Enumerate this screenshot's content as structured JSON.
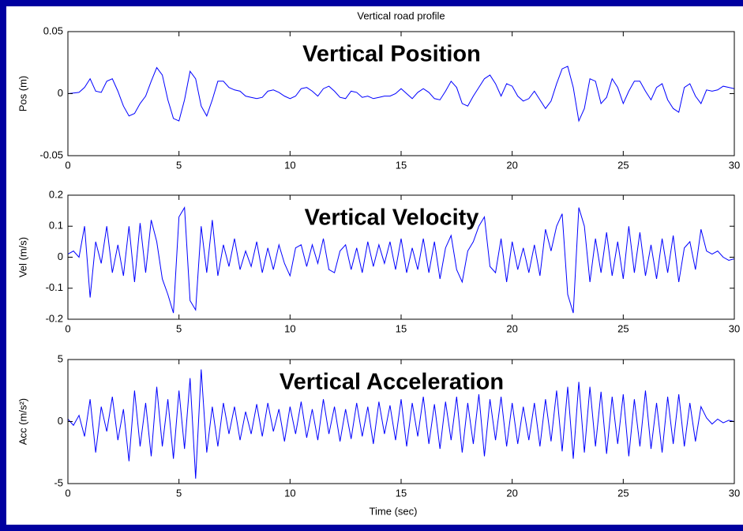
{
  "chart_data": [
    {
      "type": "line",
      "title": "Vertical road profile",
      "annotation": "Vertical Position",
      "ylabel": "Pos (m)",
      "x": [
        0,
        0.25,
        0.5,
        0.75,
        1,
        1.25,
        1.5,
        1.75,
        2,
        2.25,
        2.5,
        2.75,
        3,
        3.25,
        3.5,
        3.75,
        4,
        4.25,
        4.5,
        4.75,
        5,
        5.25,
        5.5,
        5.75,
        6,
        6.25,
        6.5,
        6.75,
        7,
        7.25,
        7.5,
        7.75,
        8,
        8.25,
        8.5,
        8.75,
        9,
        9.25,
        9.5,
        9.75,
        10,
        10.25,
        10.5,
        10.75,
        11,
        11.25,
        11.5,
        11.75,
        12,
        12.25,
        12.5,
        12.75,
        13,
        13.25,
        13.5,
        13.75,
        14,
        14.25,
        14.5,
        14.75,
        15,
        15.25,
        15.5,
        15.75,
        16,
        16.25,
        16.5,
        16.75,
        17,
        17.25,
        17.5,
        17.75,
        18,
        18.25,
        18.5,
        18.75,
        19,
        19.25,
        19.5,
        19.75,
        20,
        20.25,
        20.5,
        20.75,
        21,
        21.25,
        21.5,
        21.75,
        22,
        22.25,
        22.5,
        22.75,
        23,
        23.25,
        23.5,
        23.75,
        24,
        24.25,
        24.5,
        24.75,
        25,
        25.25,
        25.5,
        25.75,
        26,
        26.25,
        26.5,
        26.75,
        27,
        27.25,
        27.5,
        27.75,
        28,
        28.25,
        28.5,
        28.75,
        29,
        29.25,
        29.5,
        29.75,
        30
      ],
      "series": [
        {
          "color": "#0000ff",
          "values": [
            0,
            0.0005,
            0.001,
            0.005,
            0.012,
            0.002,
            0.001,
            0.01,
            0.012,
            0.002,
            -0.01,
            -0.018,
            -0.016,
            -0.008,
            -0.002,
            0.01,
            0.021,
            0.015,
            -0.005,
            -0.02,
            -0.022,
            -0.005,
            0.018,
            0.012,
            -0.01,
            -0.018,
            -0.005,
            0.01,
            0.01,
            0.005,
            0.003,
            0.002,
            -0.002,
            -0.003,
            -0.004,
            -0.003,
            0.002,
            0.003,
            0.001,
            -0.002,
            -0.004,
            -0.002,
            0.004,
            0.005,
            0.002,
            -0.002,
            0.004,
            0.006,
            0.002,
            -0.003,
            -0.004,
            0.002,
            0.001,
            -0.003,
            -0.002,
            -0.004,
            -0.003,
            -0.002,
            -0.002,
            0,
            0.004,
            0,
            -0.004,
            0.001,
            0.004,
            0.001,
            -0.004,
            -0.005,
            0.002,
            0.01,
            0.005,
            -0.008,
            -0.01,
            -0.002,
            0.005,
            0.012,
            0.015,
            0.008,
            -0.002,
            0.008,
            0.006,
            -0.002,
            -0.006,
            -0.004,
            0.002,
            -0.005,
            -0.012,
            -0.006,
            0.008,
            0.02,
            0.022,
            0.005,
            -0.022,
            -0.012,
            0.012,
            0.01,
            -0.008,
            -0.003,
            0.012,
            0.005,
            -0.008,
            0.002,
            0.01,
            0.01,
            0.002,
            -0.005,
            0.005,
            0.008,
            -0.005,
            -0.012,
            -0.015,
            0.005,
            0.008,
            -0.002,
            -0.008,
            0.003,
            0.002,
            0.003,
            0.006,
            0.005,
            0.004
          ]
        }
      ],
      "xlim": [
        0,
        30
      ],
      "ylim": [
        -0.05,
        0.05
      ],
      "xticks": [
        0,
        5,
        10,
        15,
        20,
        25,
        30
      ],
      "yticks": [
        -0.05,
        0,
        0.05
      ]
    },
    {
      "type": "line",
      "annotation": "Vertical Velocity",
      "ylabel": "Vel (m/s)",
      "x": [
        0,
        0.25,
        0.5,
        0.75,
        1,
        1.25,
        1.5,
        1.75,
        2,
        2.25,
        2.5,
        2.75,
        3,
        3.25,
        3.5,
        3.75,
        4,
        4.25,
        4.5,
        4.75,
        5,
        5.25,
        5.5,
        5.75,
        6,
        6.25,
        6.5,
        6.75,
        7,
        7.25,
        7.5,
        7.75,
        8,
        8.25,
        8.5,
        8.75,
        9,
        9.25,
        9.5,
        9.75,
        10,
        10.25,
        10.5,
        10.75,
        11,
        11.25,
        11.5,
        11.75,
        12,
        12.25,
        12.5,
        12.75,
        13,
        13.25,
        13.5,
        13.75,
        14,
        14.25,
        14.5,
        14.75,
        15,
        15.25,
        15.5,
        15.75,
        16,
        16.25,
        16.5,
        16.75,
        17,
        17.25,
        17.5,
        17.75,
        18,
        18.25,
        18.5,
        18.75,
        19,
        19.25,
        19.5,
        19.75,
        20,
        20.25,
        20.5,
        20.75,
        21,
        21.25,
        21.5,
        21.75,
        22,
        22.25,
        22.5,
        22.75,
        23,
        23.25,
        23.5,
        23.75,
        24,
        24.25,
        24.5,
        24.75,
        25,
        25.25,
        25.5,
        25.75,
        26,
        26.25,
        26.5,
        26.75,
        27,
        27.25,
        27.5,
        27.75,
        28,
        28.25,
        28.5,
        28.75,
        29,
        29.25,
        29.5,
        29.75,
        30
      ],
      "series": [
        {
          "color": "#0000ff",
          "values": [
            0.01,
            0.02,
            0,
            0.1,
            -0.13,
            0.05,
            -0.02,
            0.1,
            -0.05,
            0.04,
            -0.06,
            0.1,
            -0.08,
            0.11,
            -0.05,
            0.12,
            0.05,
            -0.07,
            -0.12,
            -0.18,
            0.13,
            0.16,
            -0.14,
            -0.17,
            0.1,
            -0.05,
            0.12,
            -0.06,
            0.04,
            -0.03,
            0.06,
            -0.04,
            0.02,
            -0.03,
            0.05,
            -0.05,
            0.03,
            -0.04,
            0.04,
            -0.02,
            -0.06,
            0.03,
            0.04,
            -0.03,
            0.04,
            -0.02,
            0.06,
            -0.04,
            -0.05,
            0.02,
            0.04,
            -0.04,
            0.03,
            -0.05,
            0.05,
            -0.03,
            0.04,
            -0.02,
            0.05,
            -0.04,
            0.06,
            -0.05,
            0.03,
            -0.04,
            0.06,
            -0.05,
            0.05,
            -0.07,
            0.03,
            0.07,
            -0.04,
            -0.08,
            0.02,
            0.05,
            0.1,
            0.13,
            -0.03,
            -0.05,
            0.06,
            -0.08,
            0.05,
            -0.04,
            0.03,
            -0.05,
            0.04,
            -0.06,
            0.09,
            0.02,
            0.1,
            0.14,
            -0.12,
            -0.18,
            0.16,
            0.1,
            -0.08,
            0.06,
            -0.05,
            0.08,
            -0.06,
            0.05,
            -0.07,
            0.1,
            -0.05,
            0.08,
            -0.06,
            0.04,
            -0.07,
            0.06,
            -0.05,
            0.07,
            -0.08,
            0.03,
            0.05,
            -0.04,
            0.09,
            0.02,
            0.01,
            0.02,
            0,
            -0.01,
            -0.005
          ]
        }
      ],
      "xlim": [
        0,
        30
      ],
      "ylim": [
        -0.2,
        0.2
      ],
      "xticks": [
        0,
        5,
        10,
        15,
        20,
        25,
        30
      ],
      "yticks": [
        -0.2,
        -0.1,
        0,
        0.1,
        0.2
      ]
    },
    {
      "type": "line",
      "annotation": "Vertical Acceleration",
      "ylabel": "Acc (m/s²)",
      "xlabel": "Time (sec)",
      "x": [
        0,
        0.25,
        0.5,
        0.75,
        1,
        1.25,
        1.5,
        1.75,
        2,
        2.25,
        2.5,
        2.75,
        3,
        3.25,
        3.5,
        3.75,
        4,
        4.25,
        4.5,
        4.75,
        5,
        5.25,
        5.5,
        5.75,
        6,
        6.25,
        6.5,
        6.75,
        7,
        7.25,
        7.5,
        7.75,
        8,
        8.25,
        8.5,
        8.75,
        9,
        9.25,
        9.5,
        9.75,
        10,
        10.25,
        10.5,
        10.75,
        11,
        11.25,
        11.5,
        11.75,
        12,
        12.25,
        12.5,
        12.75,
        13,
        13.25,
        13.5,
        13.75,
        14,
        14.25,
        14.5,
        14.75,
        15,
        15.25,
        15.5,
        15.75,
        16,
        16.25,
        16.5,
        16.75,
        17,
        17.25,
        17.5,
        17.75,
        18,
        18.25,
        18.5,
        18.75,
        19,
        19.25,
        19.5,
        19.75,
        20,
        20.25,
        20.5,
        20.75,
        21,
        21.25,
        21.5,
        21.75,
        22,
        22.25,
        22.5,
        22.75,
        23,
        23.25,
        23.5,
        23.75,
        24,
        24.25,
        24.5,
        24.75,
        25,
        25.25,
        25.5,
        25.75,
        26,
        26.25,
        26.5,
        26.75,
        27,
        27.25,
        27.5,
        27.75,
        28,
        28.25,
        28.5,
        28.75,
        29,
        29.25,
        29.5,
        29.75,
        30
      ],
      "series": [
        {
          "color": "#0000ff",
          "values": [
            0.2,
            -0.3,
            0.5,
            -1.2,
            1.8,
            -2.5,
            1.2,
            -0.8,
            2,
            -1.5,
            1,
            -3.2,
            2.5,
            -2,
            1.5,
            -2.8,
            2.8,
            -2,
            1.8,
            -3,
            2.5,
            -2.2,
            3.5,
            -4.6,
            4.2,
            -2.5,
            1.2,
            -2,
            1.5,
            -1,
            1.2,
            -1.5,
            0.8,
            -1,
            1.4,
            -1.2,
            1.5,
            -0.8,
            1,
            -1.6,
            1.2,
            -1,
            1.6,
            -1.3,
            1,
            -1.5,
            1.8,
            -1,
            1.2,
            -1.6,
            1,
            -1.4,
            1.5,
            -1.2,
            1.2,
            -1.8,
            1.6,
            -1,
            1.3,
            -1.5,
            1.8,
            -2,
            1.5,
            -1.2,
            2,
            -1.8,
            1.4,
            -2.2,
            1.6,
            -1.5,
            2,
            -2.5,
            1.5,
            -1.8,
            2.2,
            -2.8,
            1.8,
            -1.5,
            2,
            -2,
            1.5,
            -1.8,
            1.2,
            -1.5,
            1.5,
            -2,
            1.8,
            -1.6,
            2.5,
            -2.4,
            2.8,
            -3,
            3.2,
            -2.5,
            2.8,
            -2,
            2.4,
            -2.6,
            2,
            -1.8,
            2.2,
            -2.8,
            1.8,
            -2,
            2.5,
            -2.2,
            1.5,
            -2.5,
            2,
            -1.8,
            2.2,
            -2,
            1.5,
            -1.6,
            1.2,
            0.3,
            -0.2,
            0.2,
            -0.1,
            0.1,
            0
          ]
        }
      ],
      "xlim": [
        0,
        30
      ],
      "ylim": [
        -5,
        5
      ],
      "xticks": [
        0,
        5,
        10,
        15,
        20,
        25,
        30
      ],
      "yticks": [
        -5,
        0,
        5
      ]
    }
  ]
}
